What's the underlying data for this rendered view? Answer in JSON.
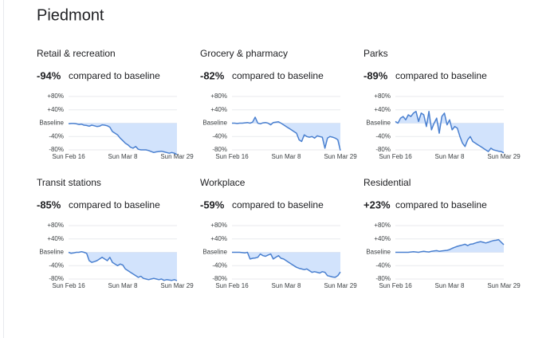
{
  "title": "Piedmont",
  "chart_data": [
    {
      "type": "line",
      "title": "Retail & recreation",
      "headline": "-94%",
      "headline_text": "compared to baseline",
      "categories": [
        "Sun Feb 16",
        null,
        null,
        null,
        null,
        null,
        null,
        null,
        null,
        null,
        null,
        null,
        null,
        null,
        null,
        null,
        null,
        null,
        null,
        null,
        null,
        "Sun Mar 8",
        null,
        null,
        null,
        null,
        null,
        null,
        null,
        null,
        null,
        null,
        null,
        null,
        null,
        null,
        null,
        null,
        null,
        null,
        null,
        null,
        "Sun Mar 29"
      ],
      "values": [
        -2,
        -1,
        -1,
        -2,
        -4,
        -3,
        -6,
        -7,
        -9,
        -6,
        -8,
        -10,
        -9,
        -5,
        -6,
        -8,
        -12,
        -25,
        -30,
        -35,
        -45,
        -52,
        -60,
        -65,
        -72,
        -75,
        -70,
        -78,
        -80,
        -80,
        -80,
        -82,
        -85,
        -88,
        -86,
        -85,
        -84,
        -86,
        -88,
        -90,
        -88,
        -90,
        -94
      ],
      "color": "#4a80d0",
      "ylim": [
        -80,
        80
      ],
      "yticks": [
        {
          "value": 80,
          "label": "+80%"
        },
        {
          "value": 40,
          "label": "+40%"
        },
        {
          "value": 0,
          "label": "Baseline"
        },
        {
          "value": -40,
          "label": "-40%"
        },
        {
          "value": -80,
          "label": "-80%"
        }
      ],
      "grid": true
    },
    {
      "type": "line",
      "title": "Grocery & pharmacy",
      "headline": "-82%",
      "headline_text": "compared to baseline",
      "categories": [
        "Sun Feb 16",
        null,
        null,
        null,
        null,
        null,
        null,
        null,
        null,
        null,
        null,
        null,
        null,
        null,
        null,
        null,
        null,
        null,
        null,
        null,
        null,
        "Sun Mar 8",
        null,
        null,
        null,
        null,
        null,
        null,
        null,
        null,
        null,
        null,
        null,
        null,
        null,
        null,
        null,
        null,
        null,
        null,
        null,
        null,
        "Sun Mar 29"
      ],
      "values": [
        0,
        0,
        -1,
        0,
        0,
        1,
        2,
        0,
        3,
        18,
        0,
        -2,
        1,
        2,
        0,
        -5,
        2,
        3,
        4,
        0,
        -5,
        -10,
        -15,
        -20,
        -25,
        -30,
        -50,
        -55,
        -35,
        -40,
        -42,
        -40,
        -45,
        -38,
        -40,
        -42,
        -75,
        -45,
        -40,
        -42,
        -45,
        -50,
        -82
      ],
      "color": "#4a80d0",
      "ylim": [
        -80,
        80
      ],
      "yticks": [
        {
          "value": 80,
          "label": "+80%"
        },
        {
          "value": 40,
          "label": "+40%"
        },
        {
          "value": 0,
          "label": "Baseline"
        },
        {
          "value": -40,
          "label": "-40%"
        },
        {
          "value": -80,
          "label": "-80%"
        }
      ],
      "grid": true
    },
    {
      "type": "line",
      "title": "Parks",
      "headline": "-89%",
      "headline_text": "compared to baseline",
      "categories": [
        "Sun Feb 16",
        null,
        null,
        null,
        null,
        null,
        null,
        null,
        null,
        null,
        null,
        null,
        null,
        null,
        null,
        null,
        null,
        null,
        null,
        null,
        null,
        "Sun Mar 8",
        null,
        null,
        null,
        null,
        null,
        null,
        null,
        null,
        null,
        null,
        null,
        null,
        null,
        null,
        null,
        null,
        null,
        null,
        null,
        null,
        "Sun Mar 29"
      ],
      "values": [
        5,
        0,
        15,
        20,
        10,
        25,
        20,
        30,
        35,
        5,
        30,
        25,
        -10,
        35,
        -20,
        0,
        15,
        -30,
        20,
        30,
        -5,
        10,
        -20,
        -10,
        -15,
        -40,
        -60,
        -70,
        -50,
        -40,
        -55,
        -60,
        -65,
        -70,
        -75,
        -80,
        -85,
        -75,
        -80,
        -82,
        -84,
        -85,
        -89
      ],
      "color": "#4a80d0",
      "ylim": [
        -80,
        80
      ],
      "yticks": [
        {
          "value": 80,
          "label": "+80%"
        },
        {
          "value": 40,
          "label": "+40%"
        },
        {
          "value": 0,
          "label": "Baseline"
        },
        {
          "value": -40,
          "label": "-40%"
        },
        {
          "value": -80,
          "label": "-80%"
        }
      ],
      "grid": true
    },
    {
      "type": "line",
      "title": "Transit stations",
      "headline": "-85%",
      "headline_text": "compared to baseline",
      "categories": [
        "Sun Feb 16",
        null,
        null,
        null,
        null,
        null,
        null,
        null,
        null,
        null,
        null,
        null,
        null,
        null,
        null,
        null,
        null,
        null,
        null,
        null,
        null,
        "Sun Mar 8",
        null,
        null,
        null,
        null,
        null,
        null,
        null,
        null,
        null,
        null,
        null,
        null,
        null,
        null,
        null,
        null,
        null,
        null,
        null,
        null,
        "Sun Mar 29"
      ],
      "values": [
        0,
        -3,
        -2,
        0,
        0,
        2,
        0,
        -3,
        -25,
        -30,
        -28,
        -25,
        -20,
        -15,
        -20,
        -25,
        -15,
        -30,
        -35,
        -40,
        -35,
        -38,
        -50,
        -55,
        -60,
        -65,
        -70,
        -75,
        -72,
        -78,
        -80,
        -82,
        -80,
        -78,
        -80,
        -82,
        -80,
        -84,
        -82,
        -83,
        -84,
        -82,
        -85
      ],
      "color": "#4a80d0",
      "ylim": [
        -80,
        80
      ],
      "yticks": [
        {
          "value": 80,
          "label": "+80%"
        },
        {
          "value": 40,
          "label": "+40%"
        },
        {
          "value": 0,
          "label": "Baseline"
        },
        {
          "value": -40,
          "label": "-40%"
        },
        {
          "value": -80,
          "label": "-80%"
        }
      ],
      "grid": true
    },
    {
      "type": "line",
      "title": "Workplace",
      "headline": "-59%",
      "headline_text": "compared to baseline",
      "categories": [
        "Sun Feb 16",
        null,
        null,
        null,
        null,
        null,
        null,
        null,
        null,
        null,
        null,
        null,
        null,
        null,
        null,
        null,
        null,
        null,
        null,
        null,
        null,
        "Sun Mar 8",
        null,
        null,
        null,
        null,
        null,
        null,
        null,
        null,
        null,
        null,
        null,
        null,
        null,
        null,
        null,
        null,
        null,
        null,
        null,
        null,
        "Sun Mar 29"
      ],
      "values": [
        0,
        0,
        0,
        0,
        -1,
        -2,
        0,
        -20,
        -18,
        -17,
        -15,
        -5,
        -10,
        -12,
        -8,
        -5,
        -20,
        -15,
        -10,
        -18,
        -20,
        -25,
        -30,
        -35,
        -40,
        -45,
        -48,
        -50,
        -52,
        -50,
        -55,
        -60,
        -58,
        -60,
        -62,
        -58,
        -60,
        -70,
        -72,
        -74,
        -75,
        -70,
        -59
      ],
      "color": "#4a80d0",
      "ylim": [
        -80,
        80
      ],
      "yticks": [
        {
          "value": 80,
          "label": "+80%"
        },
        {
          "value": 40,
          "label": "+40%"
        },
        {
          "value": 0,
          "label": "Baseline"
        },
        {
          "value": -40,
          "label": "-40%"
        },
        {
          "value": -80,
          "label": "-80%"
        }
      ],
      "grid": true
    },
    {
      "type": "line",
      "title": "Residential",
      "headline": "+23%",
      "headline_text": "compared to baseline",
      "categories": [
        "Sun Feb 16",
        null,
        null,
        null,
        null,
        null,
        null,
        null,
        null,
        null,
        null,
        null,
        null,
        null,
        null,
        null,
        null,
        null,
        null,
        null,
        null,
        "Sun Mar 8",
        null,
        null,
        null,
        null,
        null,
        null,
        null,
        null,
        null,
        null,
        null,
        null,
        null,
        null,
        null,
        null,
        null,
        null,
        null,
        null,
        "Sun Mar 29"
      ],
      "values": [
        0,
        0,
        0,
        0,
        0,
        0,
        1,
        2,
        1,
        0,
        2,
        3,
        2,
        1,
        3,
        4,
        5,
        3,
        4,
        5,
        6,
        8,
        12,
        15,
        18,
        20,
        22,
        24,
        20,
        24,
        25,
        28,
        30,
        32,
        30,
        28,
        30,
        33,
        35,
        36,
        38,
        30,
        23
      ],
      "color": "#4a80d0",
      "ylim": [
        -80,
        80
      ],
      "yticks": [
        {
          "value": 80,
          "label": "+80%"
        },
        {
          "value": 40,
          "label": "+40%"
        },
        {
          "value": 0,
          "label": "Baseline"
        },
        {
          "value": -40,
          "label": "-40%"
        },
        {
          "value": -80,
          "label": "-80%"
        }
      ],
      "grid": true
    }
  ]
}
